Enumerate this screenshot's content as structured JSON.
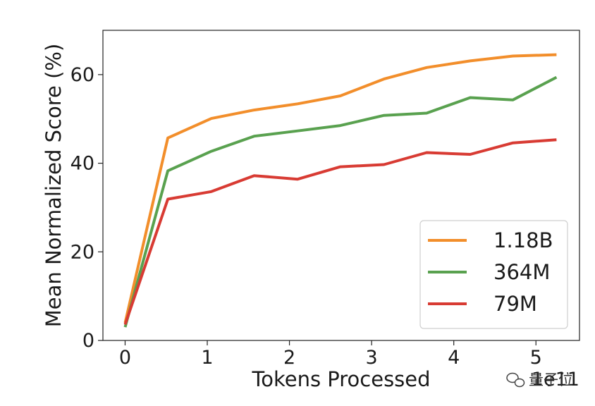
{
  "chart_data": {
    "type": "line",
    "xlabel": "Tokens Processed",
    "ylabel": "Mean Normalized Score (%)",
    "x_exponent_label": "1e11",
    "xlim": [
      -0.27,
      5.53
    ],
    "ylim": [
      0,
      70
    ],
    "xticks": [
      "0",
      "1",
      "2",
      "3",
      "4",
      "5"
    ],
    "yticks": [
      "0",
      "20",
      "40",
      "60"
    ],
    "grid": false,
    "legend_position": "bottom-right",
    "x": [
      0,
      0.52,
      1.05,
      1.57,
      2.1,
      2.62,
      3.15,
      3.67,
      4.2,
      4.72,
      5.25
    ],
    "series": [
      {
        "name": "1.18B",
        "color": "#f28e2b",
        "values": [
          4.0,
          45.7,
          50.1,
          52.0,
          53.4,
          55.2,
          59.0,
          61.6,
          63.1,
          64.2,
          64.5
        ]
      },
      {
        "name": "364M",
        "color": "#59a14f",
        "values": [
          3.0,
          38.3,
          42.7,
          46.1,
          47.3,
          48.5,
          50.8,
          51.3,
          54.8,
          54.3,
          59.4
        ]
      },
      {
        "name": "79M",
        "color": "#d83b33",
        "values": [
          3.6,
          31.9,
          33.6,
          37.2,
          36.4,
          39.2,
          39.7,
          42.4,
          42.0,
          44.6,
          45.3
        ]
      }
    ]
  },
  "watermark": {
    "text": "量子位",
    "icon": "wechat-icon"
  }
}
